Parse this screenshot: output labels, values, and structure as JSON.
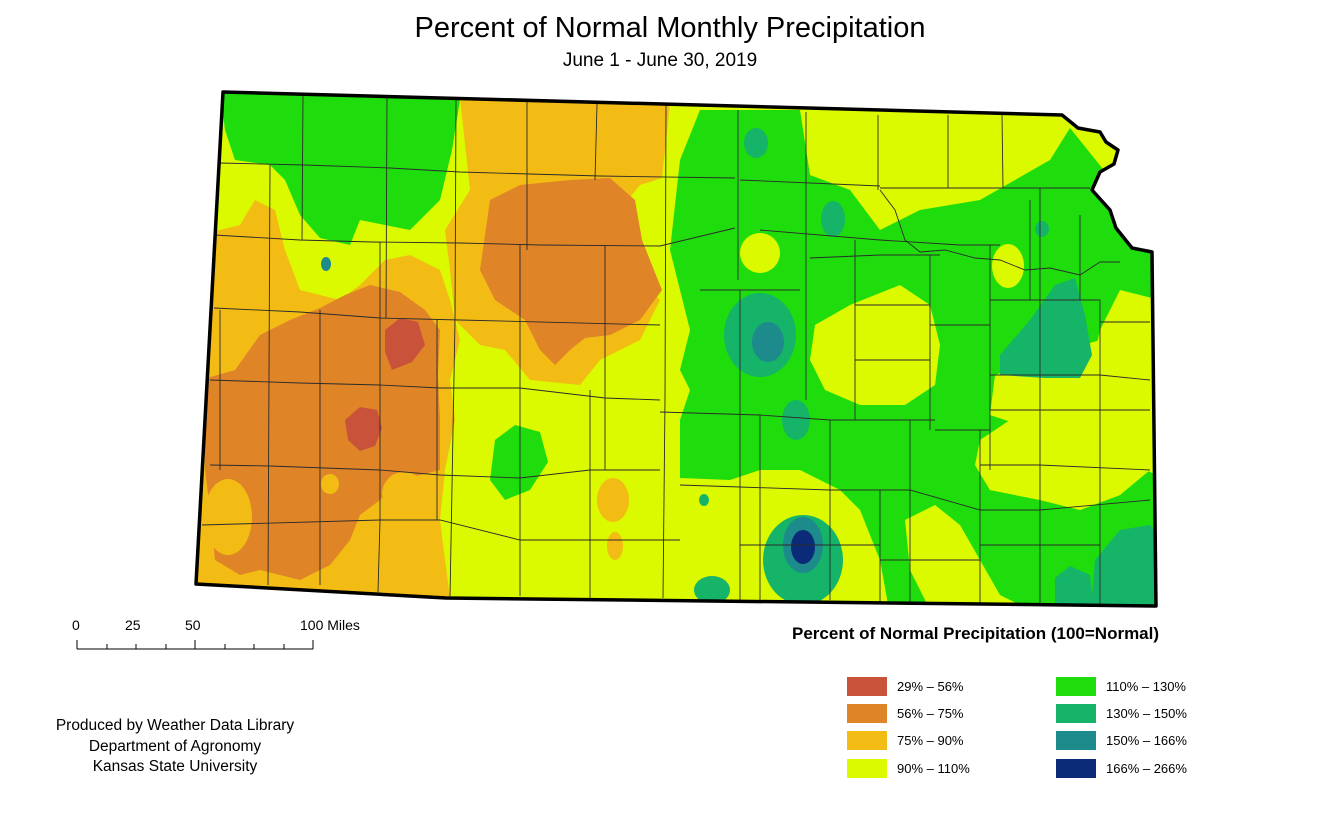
{
  "title": "Percent of Normal Monthly Precipitation",
  "subtitle": "June 1 - June 30, 2019",
  "scale_bar": {
    "labels": [
      "0",
      "25",
      "50",
      "100 Miles"
    ]
  },
  "credits": [
    "Produced by Weather Data Library",
    "Department of Agronomy",
    "Kansas State University"
  ],
  "legend": {
    "title": "Percent of Normal Precipitation (100=Normal)",
    "classes": [
      {
        "label": "29% – 56%",
        "color": "#c8523a"
      },
      {
        "label": "56% – 75%",
        "color": "#e08428"
      },
      {
        "label": "75% – 90%",
        "color": "#f2bc14"
      },
      {
        "label": "90% – 110%",
        "color": "#dbfa00"
      },
      {
        "label": "110% – 130%",
        "color": "#1fdc0c"
      },
      {
        "label": "130% – 150%",
        "color": "#16b468"
      },
      {
        "label": "150% – 166%",
        "color": "#1d8a8c"
      },
      {
        "label": "166% – 266%",
        "color": "#0b2a78"
      }
    ]
  }
}
